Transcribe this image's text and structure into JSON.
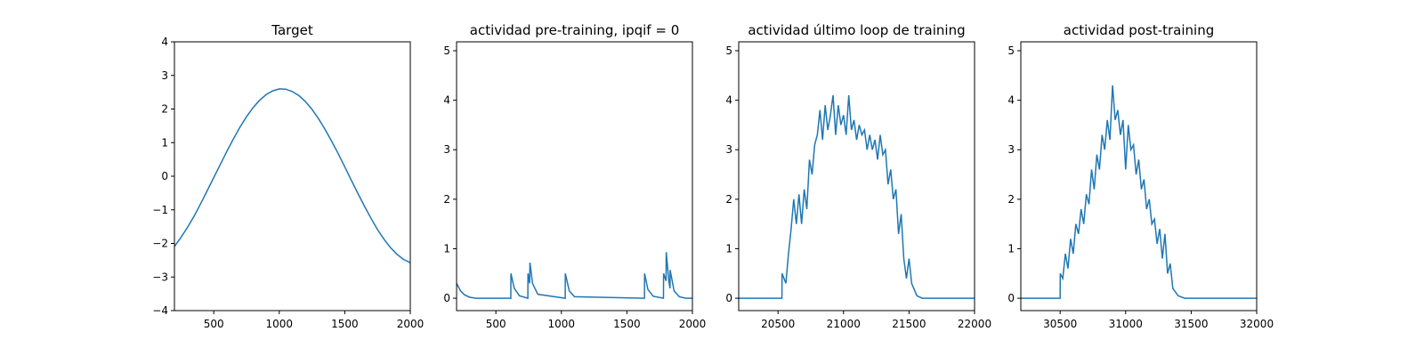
{
  "chart_data": [
    {
      "type": "line",
      "title": "Target",
      "color": "#1f77b4",
      "x": [
        200,
        250,
        300,
        350,
        400,
        450,
        500,
        550,
        600,
        650,
        700,
        750,
        800,
        850,
        900,
        950,
        1000,
        1050,
        1100,
        1150,
        1200,
        1250,
        1300,
        1350,
        1400,
        1450,
        1500,
        1550,
        1600,
        1650,
        1700,
        1750,
        1800,
        1850,
        1900,
        1950,
        2000
      ],
      "values": [
        -2.09,
        -1.82,
        -1.52,
        -1.19,
        -0.82,
        -0.43,
        -0.04,
        0.35,
        0.74,
        1.11,
        1.46,
        1.77,
        2.04,
        2.26,
        2.43,
        2.54,
        2.6,
        2.59,
        2.52,
        2.4,
        2.22,
        1.99,
        1.71,
        1.39,
        1.04,
        0.67,
        0.28,
        -0.12,
        -0.51,
        -0.89,
        -1.25,
        -1.59,
        -1.88,
        -2.13,
        -2.33,
        -2.48,
        -2.57
      ],
      "xlim": [
        200,
        2000
      ],
      "xticks": [
        500,
        1000,
        1500,
        2000
      ],
      "ylim": [
        -4,
        4
      ],
      "yticks": [
        {
          "value": -4,
          "label": "−4"
        },
        {
          "value": -3,
          "label": "−3"
        },
        {
          "value": -2,
          "label": "−2"
        },
        {
          "value": -1,
          "label": "−1"
        },
        0,
        1,
        2,
        3,
        4
      ]
    },
    {
      "type": "line",
      "title": "actividad pre-training, ipqif = 0",
      "color": "#1f77b4",
      "x": [
        200,
        230,
        260,
        300,
        350,
        614,
        615,
        640,
        680,
        744,
        745,
        758,
        760,
        780,
        820,
        1029,
        1030,
        1060,
        1100,
        1634,
        1635,
        1660,
        1700,
        1779,
        1780,
        1799,
        1800,
        1820,
        1829,
        1830,
        1860,
        1900,
        1950,
        2000
      ],
      "values": [
        0.3,
        0.15,
        0.07,
        0.02,
        0,
        0,
        0.5,
        0.2,
        0.05,
        0,
        0.5,
        0.3,
        0.72,
        0.3,
        0.08,
        0,
        0.5,
        0.15,
        0.03,
        0,
        0.5,
        0.18,
        0.04,
        0,
        0.5,
        0.35,
        0.93,
        0.35,
        0.2,
        0.57,
        0.15,
        0.03,
        0,
        0
      ],
      "xlim": [
        200,
        2000
      ],
      "xticks": [
        500,
        1000,
        1500,
        2000
      ],
      "ylim": [
        -0.25,
        5.18
      ],
      "yticks": [
        0,
        1,
        2,
        3,
        4,
        5
      ]
    },
    {
      "type": "line",
      "title": "actividad último loop de training",
      "color": "#1f77b4",
      "x": [
        20200,
        20530,
        20531,
        20560,
        20580,
        20600,
        20620,
        20640,
        20660,
        20680,
        20700,
        20720,
        20740,
        20760,
        20780,
        20800,
        20820,
        20840,
        20860,
        20880,
        20900,
        20920,
        20940,
        20960,
        20980,
        21000,
        21020,
        21040,
        21060,
        21080,
        21100,
        21120,
        21140,
        21160,
        21180,
        21200,
        21220,
        21240,
        21260,
        21280,
        21300,
        21320,
        21340,
        21360,
        21380,
        21400,
        21420,
        21440,
        21460,
        21480,
        21500,
        21520,
        21560,
        21600,
        22000
      ],
      "values": [
        0,
        0,
        0.5,
        0.3,
        0.9,
        1.4,
        2.0,
        1.5,
        2.1,
        1.5,
        2.2,
        1.8,
        2.8,
        2.5,
        3.1,
        3.3,
        3.8,
        3.2,
        3.9,
        3.4,
        3.7,
        4.1,
        3.3,
        3.9,
        3.5,
        3.7,
        3.3,
        4.1,
        3.4,
        3.6,
        3.2,
        3.5,
        3.3,
        3.4,
        3.0,
        3.3,
        3.0,
        3.2,
        2.8,
        3.3,
        2.9,
        3.0,
        2.3,
        2.6,
        2.0,
        2.2,
        1.3,
        1.7,
        0.8,
        0.4,
        0.8,
        0.3,
        0.05,
        0,
        0
      ],
      "xlim": [
        20200,
        22000
      ],
      "xticks": [
        20500,
        21000,
        21500,
        22000
      ],
      "ylim": [
        -0.25,
        5.18
      ],
      "yticks": [
        0,
        1,
        2,
        3,
        4,
        5
      ]
    },
    {
      "type": "line",
      "title": "actividad post-training",
      "color": "#1f77b4",
      "x": [
        30200,
        30500,
        30501,
        30520,
        30540,
        30560,
        30580,
        30600,
        30620,
        30640,
        30660,
        30680,
        30700,
        30720,
        30740,
        30760,
        30780,
        30800,
        30820,
        30840,
        30860,
        30880,
        30900,
        30920,
        30940,
        30960,
        30980,
        31000,
        31020,
        31040,
        31060,
        31080,
        31100,
        31120,
        31140,
        31160,
        31180,
        31200,
        31220,
        31240,
        31260,
        31280,
        31300,
        31320,
        31340,
        31360,
        31400,
        31450,
        32000
      ],
      "values": [
        0,
        0,
        0.5,
        0.4,
        0.9,
        0.6,
        1.2,
        0.9,
        1.5,
        1.3,
        1.8,
        1.5,
        2.1,
        1.9,
        2.6,
        2.2,
        2.9,
        2.6,
        3.3,
        3.0,
        3.6,
        3.2,
        4.3,
        3.6,
        3.8,
        3.3,
        3.6,
        2.6,
        3.5,
        3.0,
        3.1,
        2.5,
        2.8,
        2.2,
        2.4,
        1.8,
        2.0,
        1.5,
        1.6,
        1.1,
        1.4,
        0.8,
        1.3,
        0.5,
        0.7,
        0.2,
        0.05,
        0,
        0
      ],
      "xlim": [
        30200,
        32000
      ],
      "xticks": [
        30500,
        31000,
        31500,
        32000
      ],
      "ylim": [
        -0.25,
        5.18
      ],
      "yticks": [
        0,
        1,
        2,
        3,
        4,
        5
      ]
    }
  ]
}
